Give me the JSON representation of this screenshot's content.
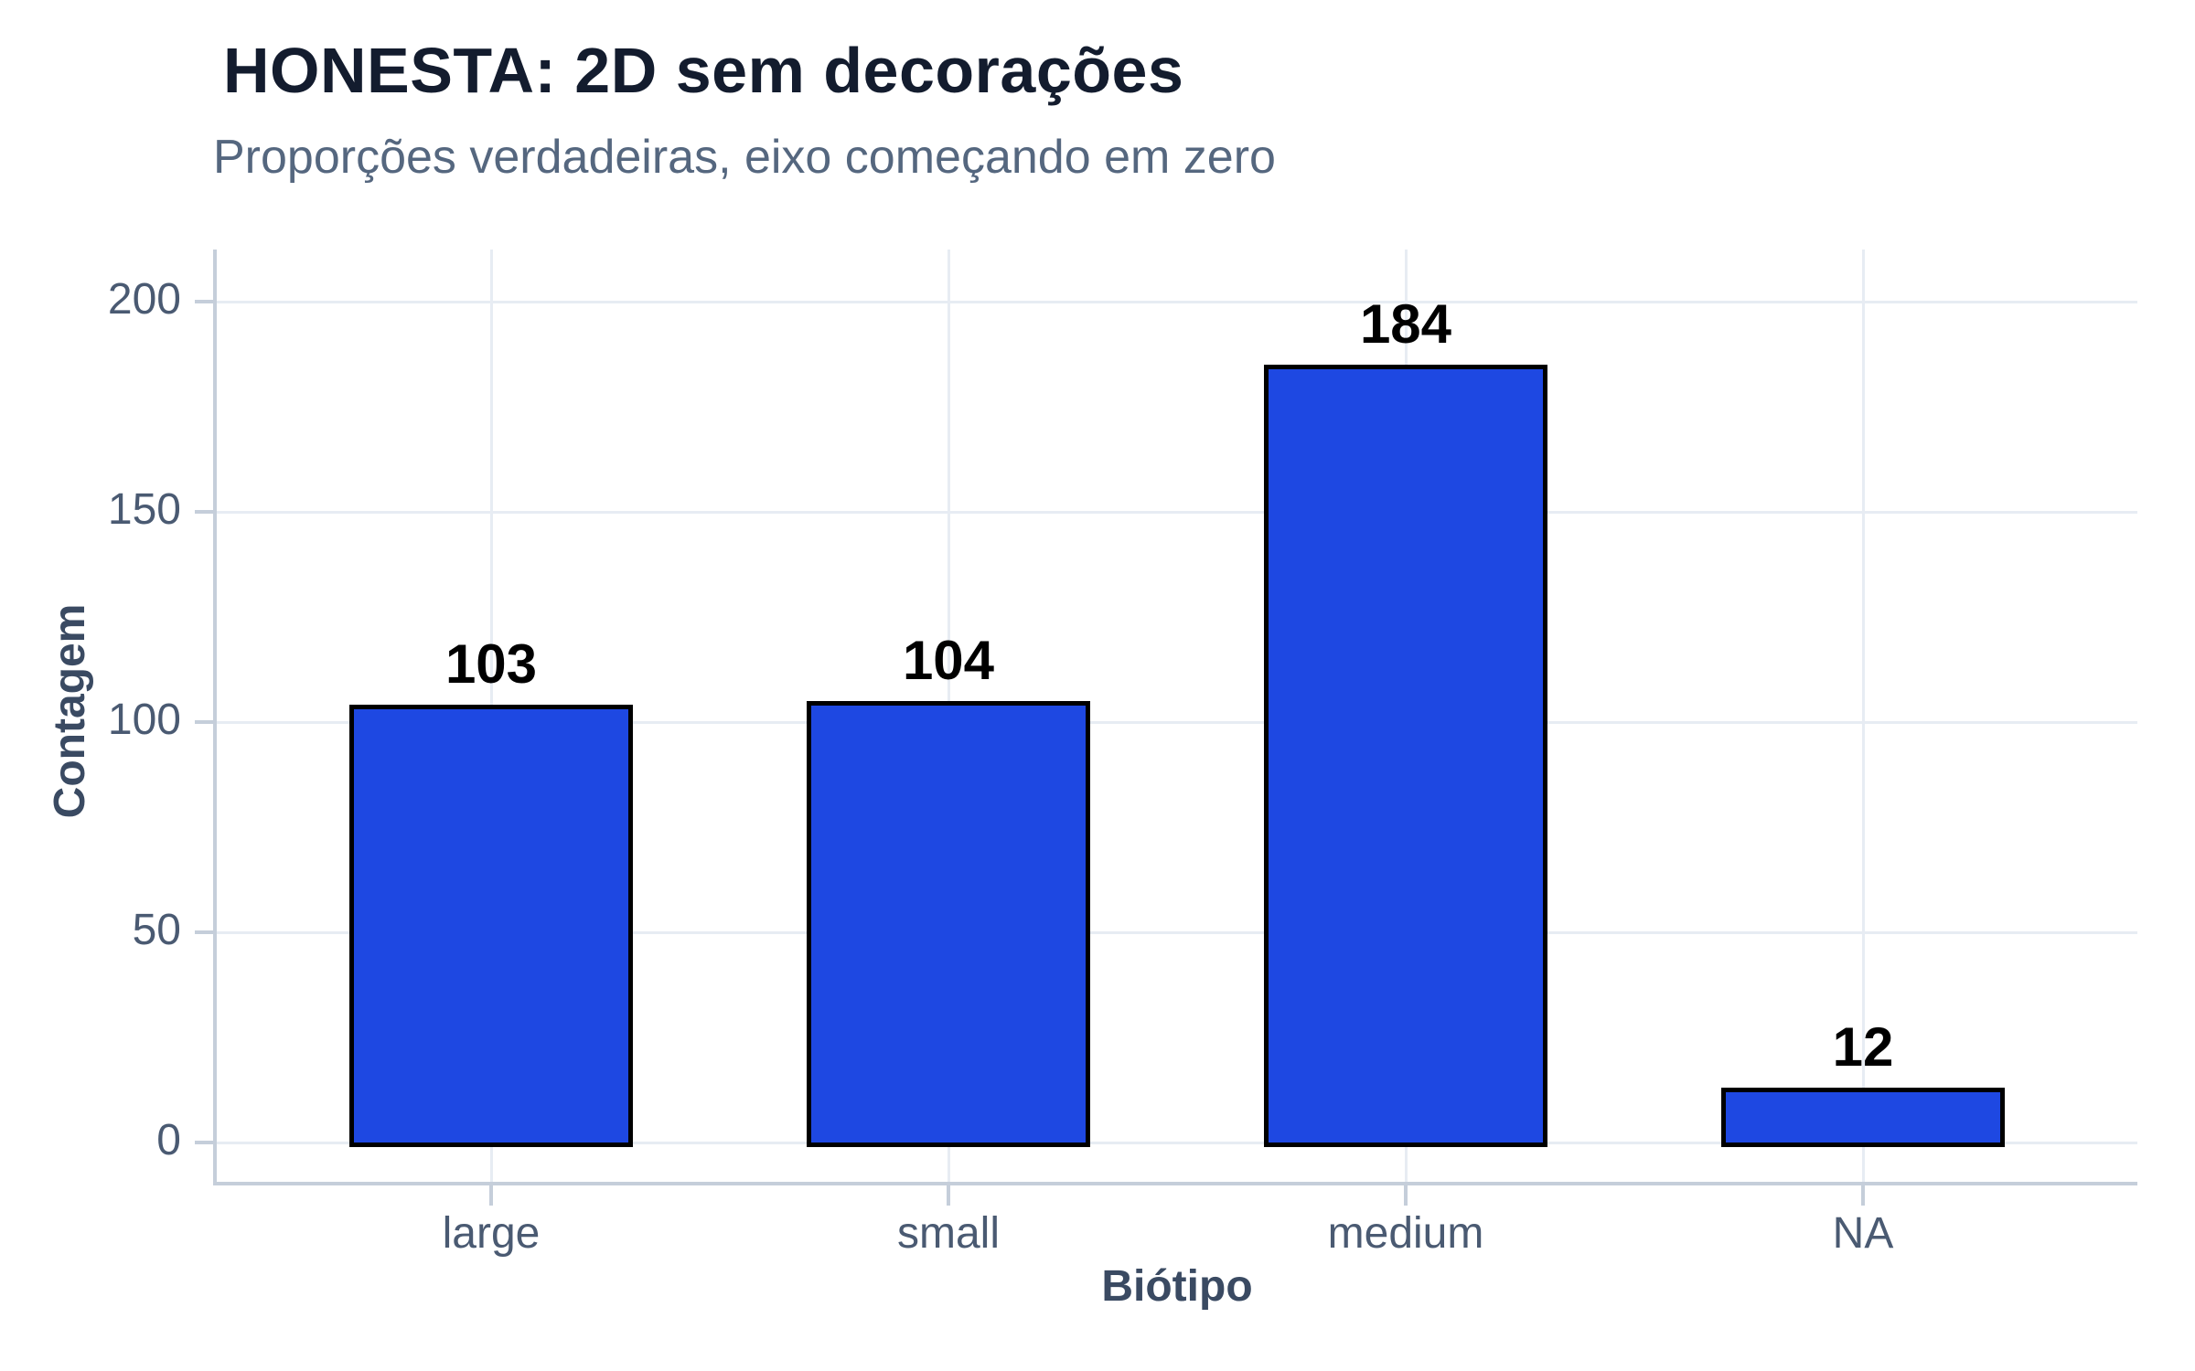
{
  "chart_data": {
    "type": "bar",
    "title": "HONESTA: 2D sem decorações",
    "subtitle": "Proporções verdadeiras, eixo começando em zero",
    "xlabel": "Biótipo",
    "ylabel": "Contagem",
    "categories": [
      "large",
      "small",
      "medium",
      "NA"
    ],
    "values": [
      103,
      104,
      184,
      12
    ],
    "value_labels": [
      "103",
      "104",
      "184",
      "12"
    ],
    "yticks": [
      0,
      50,
      100,
      150,
      200
    ],
    "ylim": [
      0,
      212
    ],
    "grid": true,
    "legend": "none",
    "bar_rel_width": 0.6,
    "x_expand": 0.6,
    "colors": {
      "background": "#FFFFFF",
      "bar_fill": "#1E48E2",
      "bar_border": "#000000",
      "title": "#131C2E",
      "subtitle": "#55677F",
      "tick_label": "#4A5A72",
      "axis_title": "#3A4A62",
      "axis_line": "#C5CEDA",
      "gridline": "#E7ECF3",
      "value_label": "#000000"
    }
  }
}
